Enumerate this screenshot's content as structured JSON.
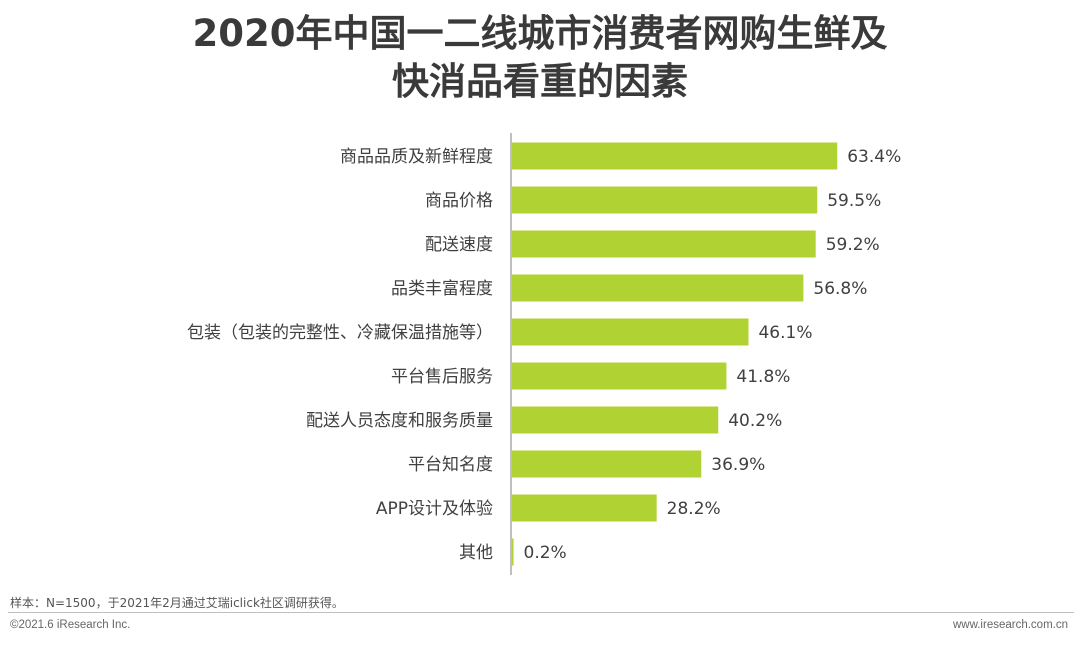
{
  "header": {
    "title_line1": "2020年中国一二线城市消费者网购生鲜及",
    "title_line2": "快消品看重的因素"
  },
  "chart_data": {
    "type": "bar",
    "orientation": "horizontal",
    "title": "2020年中国一二线城市消费者网购生鲜及快消品看重的因素",
    "categories": [
      "商品品质及新鲜程度",
      "商品价格",
      "配送速度",
      "品类丰富程度",
      "包装（包装的完整性、冷藏保温措施等）",
      "平台售后服务",
      "配送人员态度和服务质量",
      "平台知名度",
      "APP设计及体验",
      "其他"
    ],
    "values": [
      63.4,
      59.5,
      59.2,
      56.8,
      46.1,
      41.8,
      40.2,
      36.9,
      28.2,
      0.2
    ],
    "value_labels": [
      "63.4%",
      "59.5%",
      "59.2%",
      "56.8%",
      "46.1%",
      "41.8%",
      "40.2%",
      "36.9%",
      "28.2%",
      "0.2%"
    ],
    "unit": "%",
    "xlim": [
      0,
      100
    ],
    "bar_color": "#b0d232",
    "grid": false,
    "legend": "none"
  },
  "footer": {
    "note": "样本：N=1500，于2021年2月通过艾瑞iclick社区调研获得。",
    "copyright": "©2021.6 iResearch Inc.",
    "website": "www.iresearch.com.cn"
  }
}
